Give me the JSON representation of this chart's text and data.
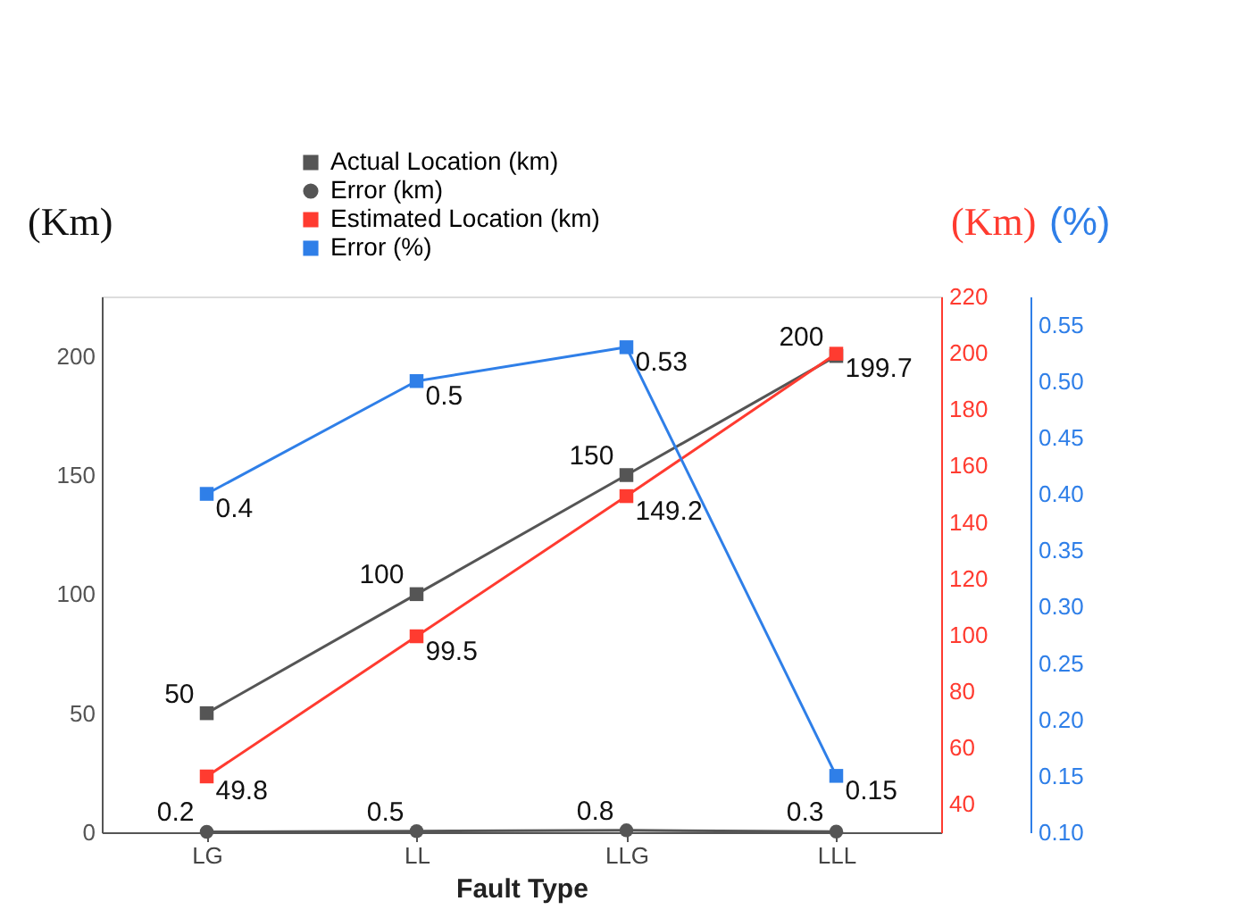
{
  "chart_data": {
    "type": "line",
    "xlabel": "Fault Type",
    "ylabel": "(Km)",
    "y2label": "(Km)",
    "y3label": "(%)",
    "categories": [
      "LG",
      "LL",
      "LLG",
      "LLL"
    ],
    "series": [
      {
        "name": "Actual Location (km)",
        "color": "#555555",
        "marker": "square",
        "axis": "y",
        "values": [
          50,
          100,
          150,
          200
        ]
      },
      {
        "name": "Error (km)",
        "color": "#555555",
        "marker": "circle",
        "axis": "y",
        "values": [
          0.2,
          0.5,
          0.8,
          0.3
        ]
      },
      {
        "name": "Estimated Location (km)",
        "color": "#ff3b30",
        "marker": "square",
        "axis": "y2",
        "values": [
          49.8,
          99.5,
          149.2,
          199.7
        ]
      },
      {
        "name": "Error (%)",
        "color": "#2f7fe8",
        "marker": "square",
        "axis": "y3",
        "values": [
          0.4,
          0.5,
          0.53,
          0.15
        ]
      }
    ],
    "ylim": [
      0,
      225
    ],
    "yticks": [
      0,
      50,
      100,
      150,
      200
    ],
    "y2lim": [
      30,
      220
    ],
    "y2ticks": [
      40,
      60,
      80,
      100,
      120,
      140,
      160,
      180,
      200,
      220
    ],
    "y3lim": [
      0.1,
      0.575
    ],
    "y3ticks": [
      {
        "value": 0.1,
        "label": "0.10"
      },
      {
        "value": 0.15,
        "label": "0.15"
      },
      {
        "value": 0.2,
        "label": "0.20"
      },
      {
        "value": 0.25,
        "label": "0.25"
      },
      {
        "value": 0.3,
        "label": "0.30"
      },
      {
        "value": 0.35,
        "label": "0.35"
      },
      {
        "value": 0.4,
        "label": "0.40"
      },
      {
        "value": 0.45,
        "label": "0.45"
      },
      {
        "value": 0.5,
        "label": "0.50"
      },
      {
        "value": 0.55,
        "label": "0.55"
      }
    ],
    "data_labels": true,
    "grid": false,
    "legend": "top",
    "line_style": "solid"
  }
}
